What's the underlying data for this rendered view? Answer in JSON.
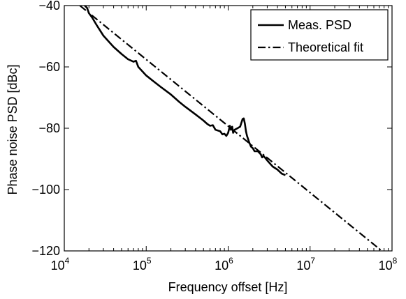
{
  "chart_data": {
    "type": "line",
    "xlabel": "Frequency offset [Hz]",
    "ylabel": "Phase noise PSD [dBc]",
    "x_scale": "log",
    "xlim": [
      10000,
      100000000
    ],
    "ylim": [
      -120,
      -40
    ],
    "x_ticks": [
      {
        "value": 10000,
        "base": "10",
        "exp": "4"
      },
      {
        "value": 100000,
        "base": "10",
        "exp": "5"
      },
      {
        "value": 1000000,
        "base": "10",
        "exp": "6"
      },
      {
        "value": 10000000,
        "base": "10",
        "exp": "7"
      },
      {
        "value": 100000000,
        "base": "10",
        "exp": "8"
      }
    ],
    "y_ticks": [
      {
        "value": -40,
        "label": "−40"
      },
      {
        "value": -60,
        "label": "−60"
      },
      {
        "value": -80,
        "label": "−80"
      },
      {
        "value": -100,
        "label": "−100"
      },
      {
        "value": -120,
        "label": "−120"
      }
    ],
    "grid": false,
    "legend_position": "top-right",
    "series": [
      {
        "name": "Meas. PSD",
        "style": "solid",
        "color": "#000000",
        "x": [
          17500,
          19000,
          20000,
          22000,
          25000,
          30000,
          35000,
          40000,
          50000,
          60000,
          70000,
          75000,
          80000,
          100000,
          120000,
          150000,
          200000,
          250000,
          300000,
          400000,
          500000,
          550000,
          600000,
          650000,
          700000,
          800000,
          850000,
          900000,
          950000,
          1000000,
          1050000,
          1080000,
          1120000,
          1150000,
          1200000,
          1300000,
          1400000,
          1500000,
          1550000,
          1600000,
          1650000,
          1700000,
          1800000,
          1900000,
          2000000,
          2100000,
          2300000,
          2500000,
          2600000,
          2700000,
          2800000,
          3000000,
          3500000,
          4000000,
          4500000,
          5000000
        ],
        "y": [
          -39.8,
          -40.8,
          -42.5,
          -44.0,
          -46.5,
          -49.8,
          -51.8,
          -53.5,
          -55.8,
          -57.5,
          -58.3,
          -58.0,
          -60.0,
          -62.8,
          -64.5,
          -66.5,
          -69.0,
          -71.3,
          -73.0,
          -75.5,
          -77.5,
          -78.5,
          -79.2,
          -79.0,
          -80.5,
          -81.0,
          -82.0,
          -81.8,
          -82.5,
          -81.5,
          -79.2,
          -80.5,
          -79.5,
          -81.5,
          -80.5,
          -80.0,
          -79.5,
          -77.0,
          -76.8,
          -78.5,
          -81.0,
          -82.5,
          -84.5,
          -86.0,
          -86.5,
          -87.5,
          -87.5,
          -88.5,
          -89.5,
          -89.0,
          -89.5,
          -90.5,
          -92.5,
          -93.5,
          -94.8,
          -95.3
        ]
      },
      {
        "name": "Theoretical fit",
        "style": "dashdot",
        "color": "#000000",
        "x": [
          15500,
          75000000
        ],
        "y": [
          -40.0,
          -120.0
        ]
      }
    ]
  }
}
